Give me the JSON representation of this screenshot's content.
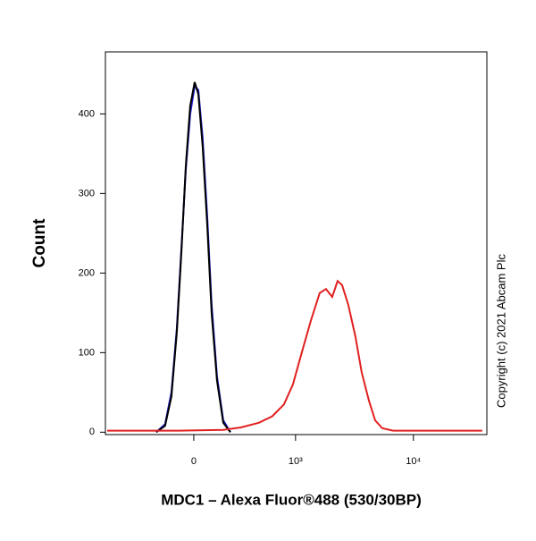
{
  "chart_data": {
    "type": "histogram-overlay",
    "x_label": "MDC1 – Alexa Fluor®488 (530/30BP)",
    "y_label": "Count",
    "copyright": "Copyright (c) 2021 Abcam Plc",
    "xscale": {
      "type": "biexponential",
      "linear_width": 284
    },
    "xlim": [
      -761,
      41500
    ],
    "xticks": [
      0,
      {
        "value": 1000,
        "label": "10³"
      },
      {
        "value": 10000,
        "label": "10⁴"
      }
    ],
    "ylim": [
      -3,
      478
    ],
    "yticks": [
      0,
      100,
      200,
      300,
      400
    ],
    "series": [
      {
        "color": "#1a1acc",
        "x": [
          -225,
          -166,
          -127,
          -95,
          -69,
          -44,
          -20,
          5,
          25,
          49,
          75,
          100,
          132,
          171,
          219
        ],
        "values": [
          0,
          10,
          50,
          130,
          230,
          330,
          400,
          435,
          430,
          370,
          270,
          160,
          70,
          15,
          0
        ]
      },
      {
        "color": "#000000",
        "x": [
          -225,
          -166,
          -127,
          -95,
          -69,
          -44,
          -20,
          5,
          25,
          49,
          75,
          100,
          132,
          171,
          219
        ],
        "values": [
          0,
          8,
          45,
          125,
          225,
          335,
          410,
          440,
          425,
          360,
          260,
          150,
          65,
          12,
          0
        ]
      },
      {
        "color": "#e02020",
        "x": [
          -733,
          -85,
          171,
          298,
          463,
          619,
          790,
          948,
          1133,
          1355,
          1616,
          1829,
          2065,
          2292,
          2502,
          2826,
          3246,
          3669,
          4212,
          4757,
          5467,
          6731,
          37900
        ],
        "values": [
          2,
          2,
          3,
          6,
          12,
          20,
          35,
          60,
          100,
          140,
          175,
          180,
          170,
          190,
          185,
          160,
          120,
          75,
          40,
          15,
          5,
          2,
          2
        ]
      }
    ]
  }
}
